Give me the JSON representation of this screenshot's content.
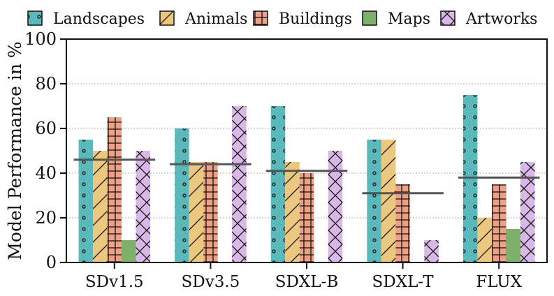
{
  "chart_data": {
    "type": "bar",
    "title": "",
    "xlabel": "",
    "ylabel": "Model Performance in %",
    "ylim": [
      0,
      100
    ],
    "yticks": [
      0,
      20,
      40,
      60,
      80,
      100
    ],
    "grid": "horizontal-dashed",
    "legend_position": "top",
    "categories": [
      "SDv1.5",
      "SDv3.5",
      "SDXL-B",
      "SDXL-T",
      "FLUX"
    ],
    "series": [
      {
        "name": "Landscapes",
        "color": "#5bb8bb",
        "hatch": "dots",
        "values": [
          55,
          60,
          70,
          55,
          75
        ]
      },
      {
        "name": "Animals",
        "color": "#ecc87e",
        "hatch": "slash",
        "values": [
          50,
          45,
          45,
          55,
          20
        ]
      },
      {
        "name": "Buildings",
        "color": "#eea084",
        "hatch": "grid",
        "values": [
          65,
          45,
          40,
          35,
          35
        ]
      },
      {
        "name": "Maps",
        "color": "#7fb069",
        "hatch": "none",
        "values": [
          10,
          0,
          0,
          0,
          15
        ]
      },
      {
        "name": "Artworks",
        "color": "#d9b8e8",
        "hatch": "cross",
        "values": [
          50,
          70,
          50,
          10,
          45
        ]
      }
    ],
    "averages": [
      46,
      44,
      41,
      31,
      38
    ],
    "average_line_color": "#555555"
  }
}
